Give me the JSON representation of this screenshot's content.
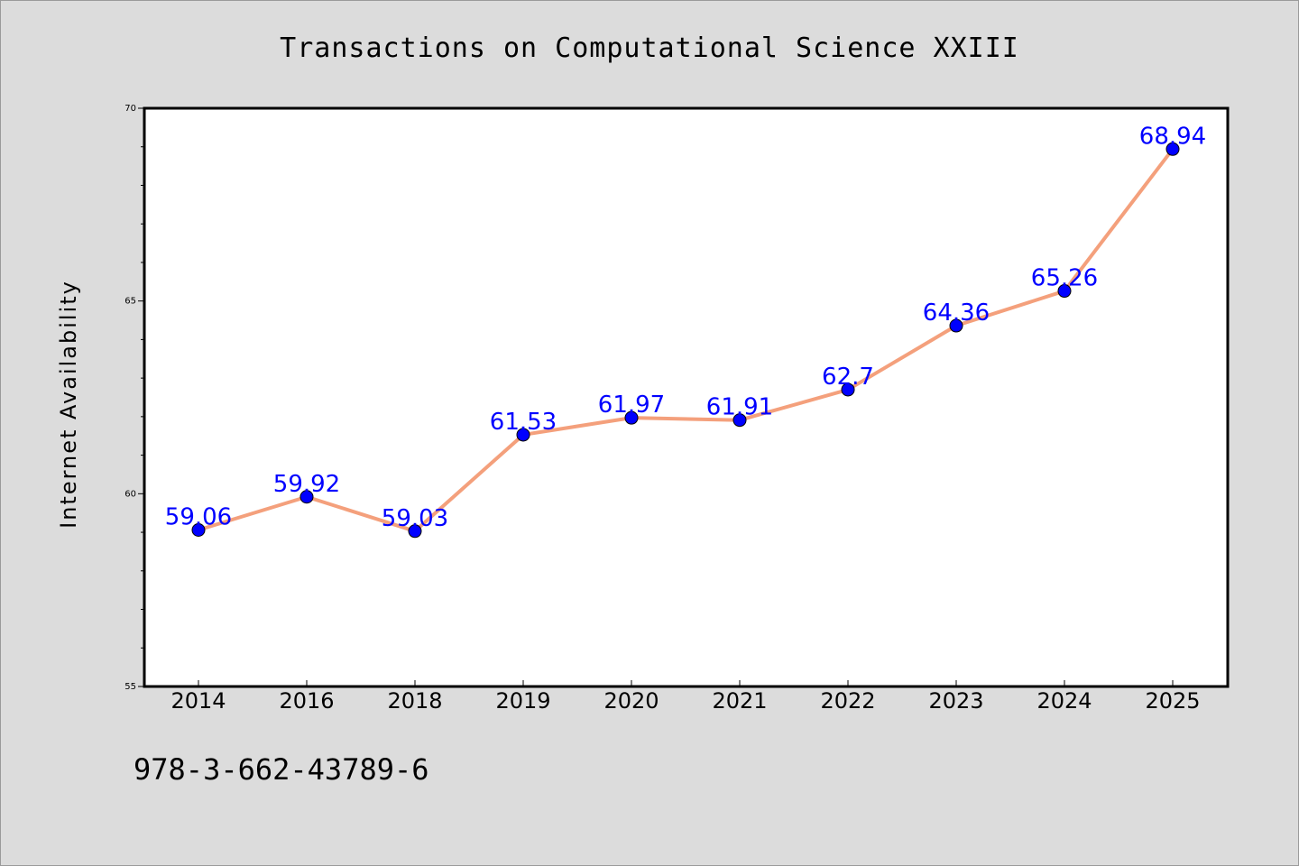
{
  "chart_data": {
    "type": "line",
    "title": "Transactions on Computational Science XXIII",
    "xlabel": "",
    "ylabel": "Internet Availability",
    "categories": [
      "2014",
      "2016",
      "2018",
      "2019",
      "2020",
      "2021",
      "2022",
      "2023",
      "2024",
      "2025"
    ],
    "series": [
      {
        "values": [
          59.06,
          59.92,
          59.03,
          61.53,
          61.97,
          61.91,
          62.7,
          64.36,
          65.26,
          68.94
        ],
        "labels": [
          "59.06",
          "59.92",
          "59.03",
          "61.53",
          "61.97",
          "61.91",
          "62.7",
          "64.36",
          "65.26",
          "68.94"
        ],
        "line_color": "#f4a07c",
        "marker_color": "#0000ff"
      }
    ],
    "ylim": [
      55,
      70
    ],
    "yticks": [
      55,
      60,
      65,
      70
    ],
    "ytick_labels": [
      "55",
      "60",
      "65",
      "70"
    ],
    "grid": false,
    "legend": "none",
    "label_color": "#0000ff"
  },
  "footer": {
    "isbn": "978-3-662-43789-6"
  },
  "colors": {
    "background": "#dcdcdc",
    "plot_background": "#ffffff",
    "axis": "#000000"
  }
}
